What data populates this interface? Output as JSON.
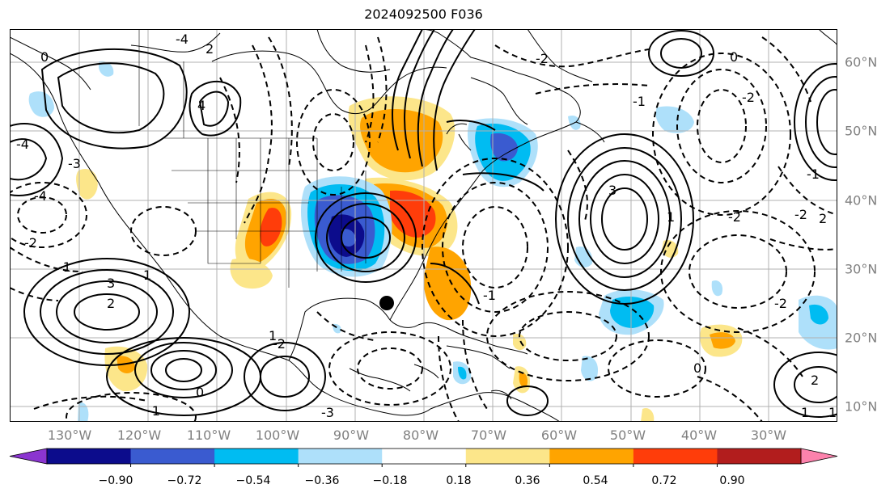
{
  "title": "2024092500 F036",
  "lon_labels": [
    "130°W",
    "120°W",
    "110°W",
    "100°W",
    "90°W",
    "80°W",
    "70°W",
    "60°W",
    "50°W",
    "40°W",
    "30°W"
  ],
  "lat_labels": [
    "60°N",
    "50°N",
    "40°N",
    "30°N",
    "20°N",
    "10°N"
  ],
  "colorbar": {
    "ticks": [
      "−0.90",
      "−0.72",
      "−0.54",
      "−0.36",
      "−0.18",
      "0.18",
      "0.36",
      "0.54",
      "0.72",
      "0.90"
    ],
    "colors": [
      "#8b35d0",
      "#0c0c8c",
      "#3a5bd0",
      "#00bcf2",
      "#aee0fa",
      "#ffffff",
      "#fce68a",
      "#ffa400",
      "#ff3d0a",
      "#b21d1d",
      "#fc82ac"
    ]
  },
  "contour_labels": [
    "0",
    "-4",
    "-3",
    "-4",
    "-2",
    "-1",
    "1",
    "2",
    "3",
    "4",
    "-4",
    "2",
    "3",
    "1",
    "0",
    "-2",
    "0",
    "-1",
    "-3",
    "-2",
    "1",
    "-2",
    "-2",
    "2",
    "-1",
    "-2",
    "0",
    "1",
    "2",
    "1",
    "-1",
    "-2",
    "-1"
  ],
  "marker": "storm-center-dot"
}
